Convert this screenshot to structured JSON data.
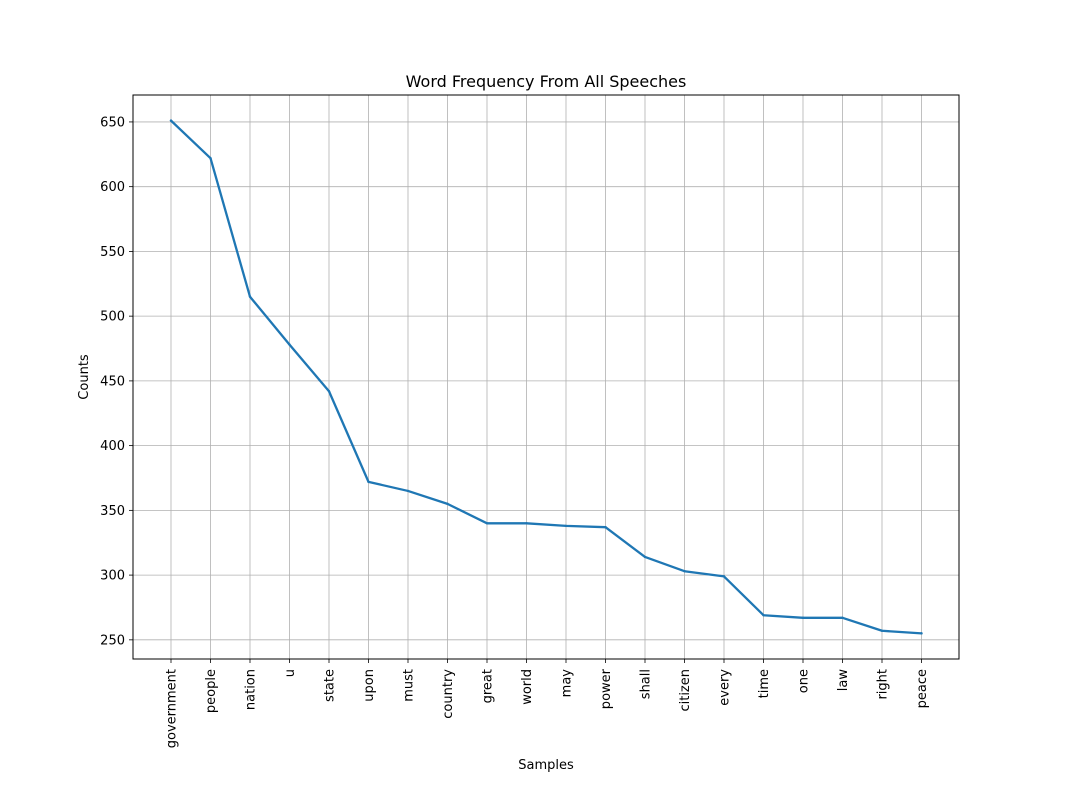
{
  "chart_data": {
    "type": "line",
    "title": "Word Frequency From All Speeches",
    "xlabel": "Samples",
    "ylabel": "Counts",
    "categories": [
      "government",
      "people",
      "nation",
      "u",
      "state",
      "upon",
      "must",
      "country",
      "great",
      "world",
      "may",
      "power",
      "shall",
      "citizen",
      "every",
      "time",
      "one",
      "law",
      "right",
      "peace"
    ],
    "series": [
      {
        "values": [
          651,
          622,
          515,
          478,
          442,
          372,
          365,
          355,
          340,
          340,
          338,
          337,
          314,
          303,
          299,
          269,
          267,
          267,
          257,
          255
        ],
        "color": "#1f77b4"
      }
    ],
    "yticks": [
      250,
      300,
      350,
      400,
      450,
      500,
      550,
      600,
      650
    ],
    "ylim": [
      235.2,
      670.8
    ],
    "grid": true
  }
}
